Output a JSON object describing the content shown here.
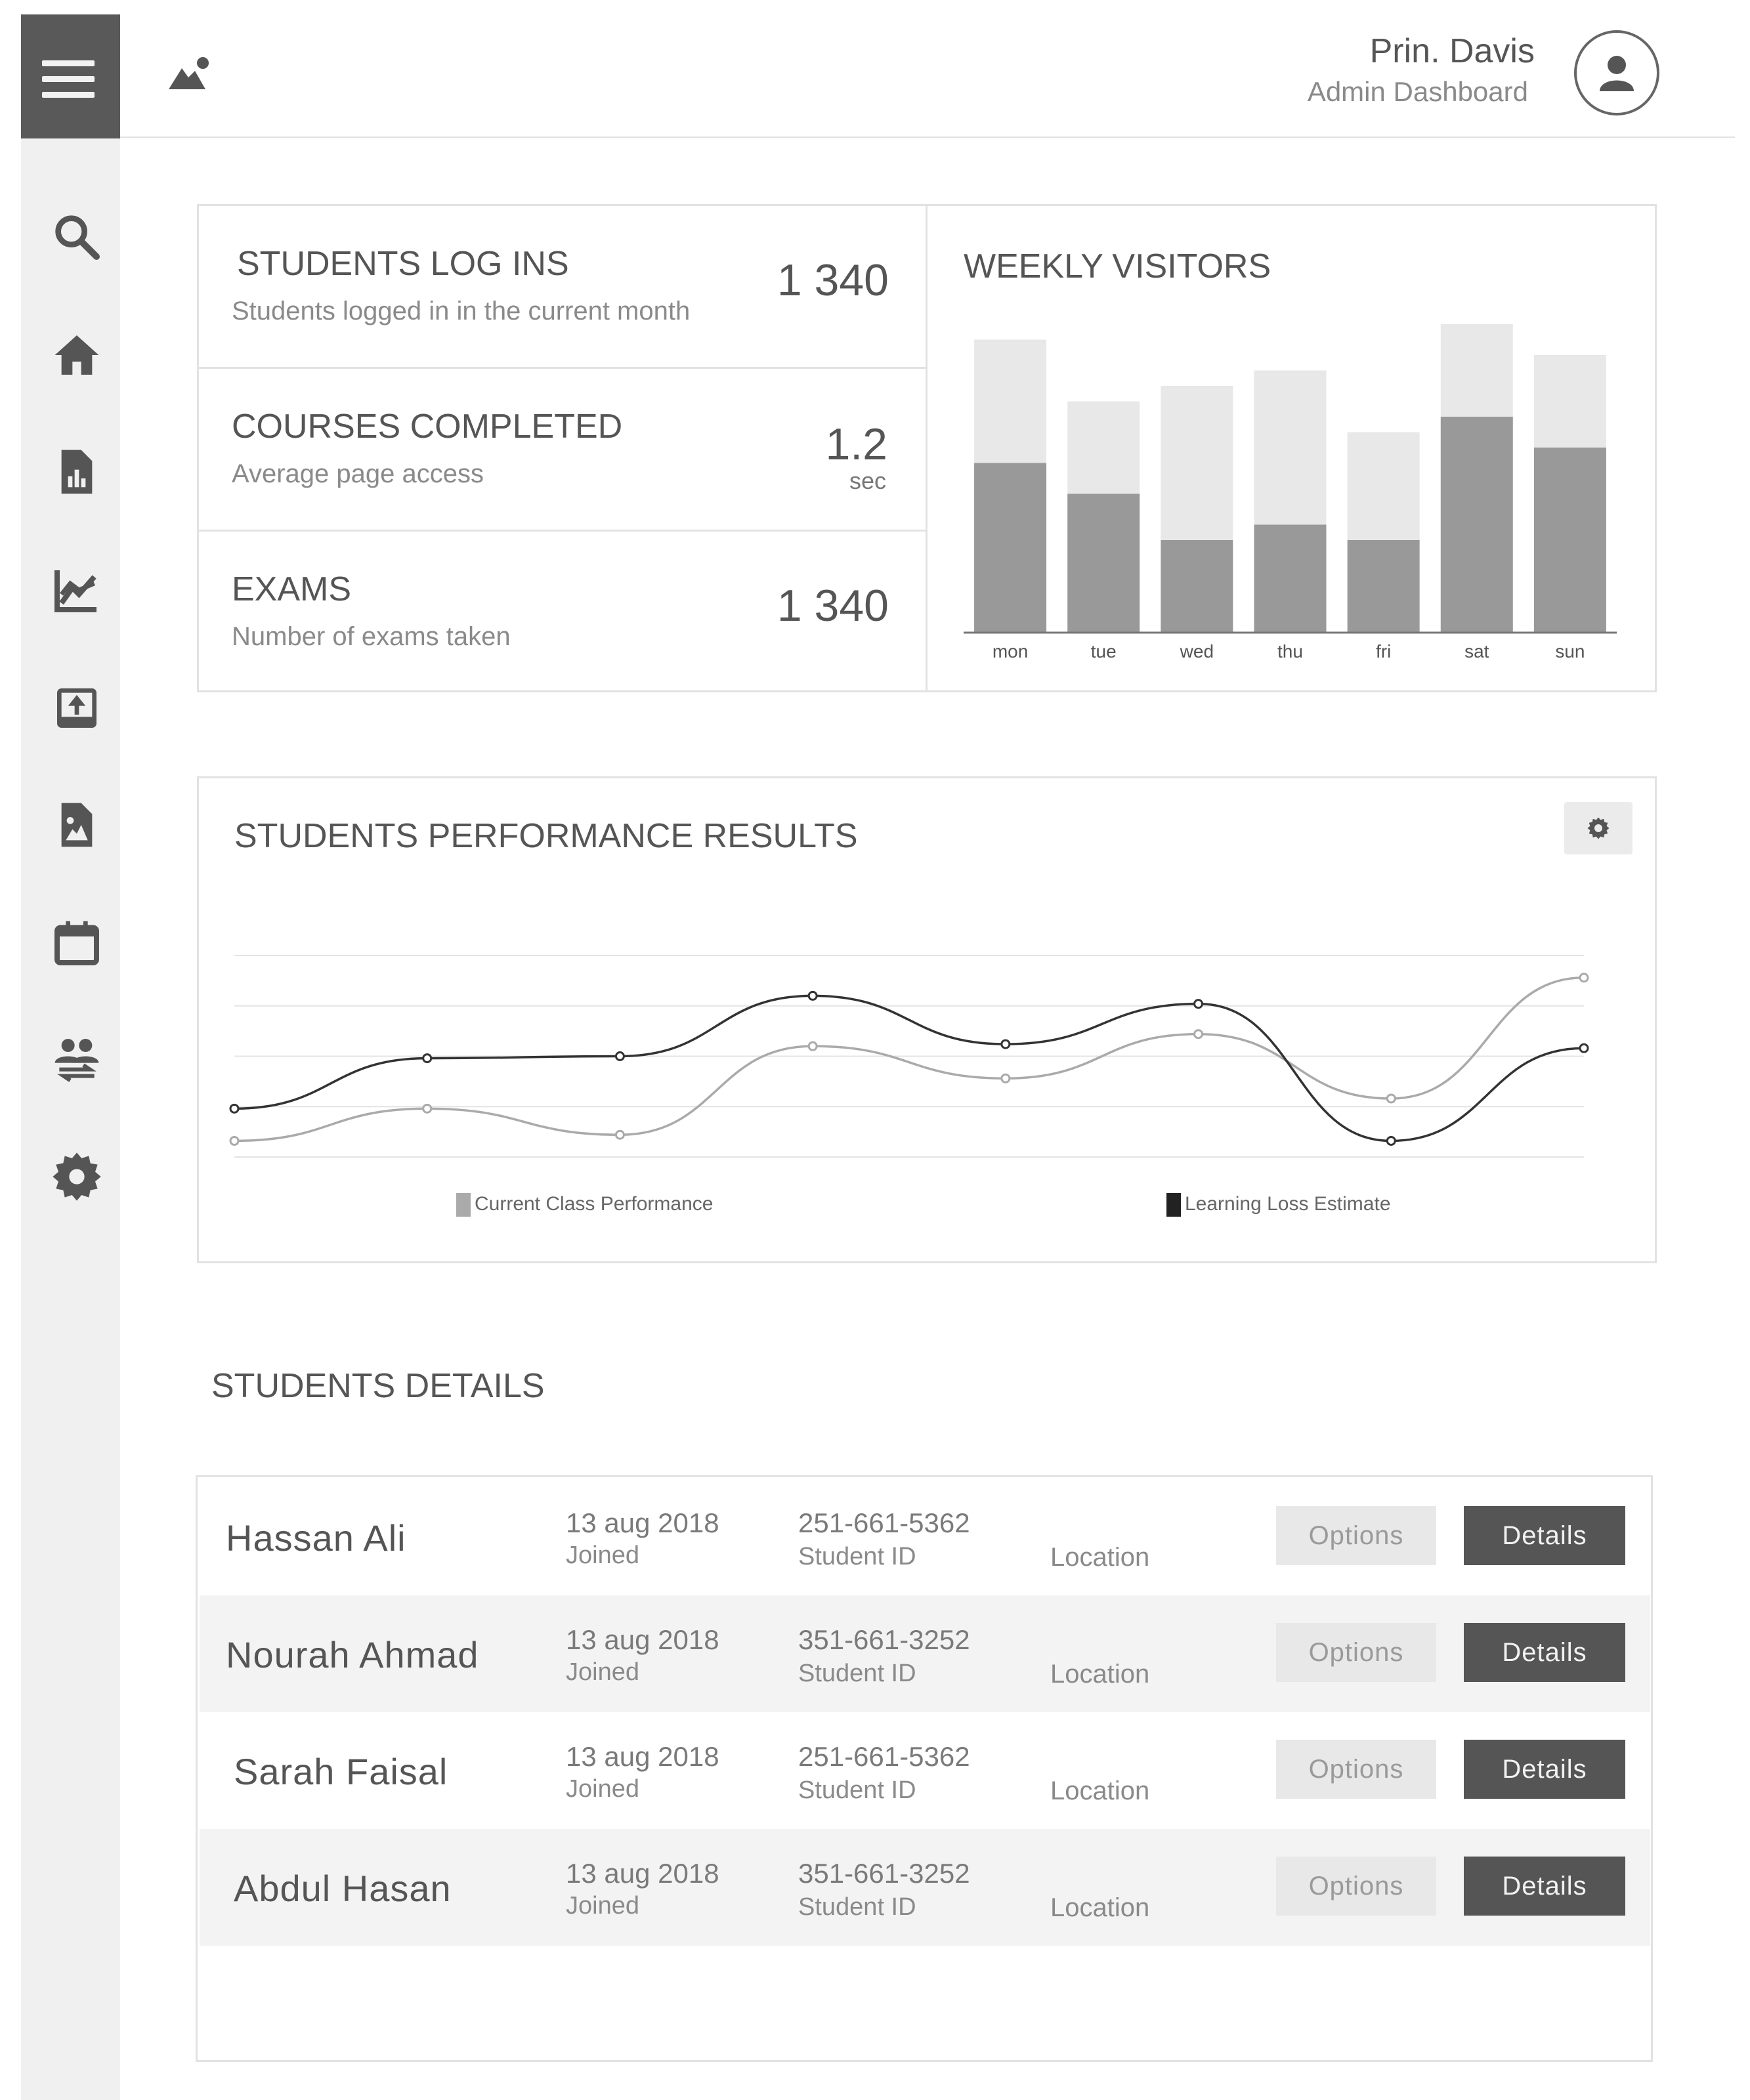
{
  "header": {
    "menu_icon": "hamburger-menu-icon",
    "brand_icon": "landscape-icon",
    "user_name": "Prin. Davis",
    "user_role": "Admin Dashboard",
    "avatar_icon": "user-icon"
  },
  "sidebar": {
    "items": [
      {
        "icon": "search-icon"
      },
      {
        "icon": "home-icon"
      },
      {
        "icon": "report-icon"
      },
      {
        "icon": "line-chart-icon"
      },
      {
        "icon": "upload-icon"
      },
      {
        "icon": "image-file-icon"
      },
      {
        "icon": "calendar-icon"
      },
      {
        "icon": "people-swap-icon"
      },
      {
        "icon": "gear-icon"
      }
    ]
  },
  "stats": [
    {
      "title": "STUDENTS LOG INS",
      "subtitle": "Students logged in in the current month",
      "value": "1 340",
      "unit": ""
    },
    {
      "title": "COURSES COMPLETED",
      "subtitle": "Average page access",
      "value": "1.2",
      "unit": "sec"
    },
    {
      "title": "EXAMS",
      "subtitle": "Number of  exams taken",
      "value": "1 340",
      "unit": ""
    }
  ],
  "weekly_visitors": {
    "title": "WEEKLY VISITORS",
    "chart_data": {
      "type": "bar",
      "stacked": true,
      "categories": [
        "mon",
        "tue",
        "wed",
        "thu",
        "fri",
        "sat",
        "sun"
      ],
      "series": [
        {
          "values": [
            55,
            45,
            30,
            35,
            30,
            70,
            60
          ],
          "color": "#999999"
        },
        {
          "values": [
            40,
            30,
            50,
            50,
            35,
            30,
            30
          ],
          "color": "#e8e8e8"
        }
      ],
      "ylim": [
        0,
        100
      ],
      "grid": false
    }
  },
  "performance": {
    "title": "STUDENTS PERFORMANCE RESULTS",
    "settings_icon": "gear-icon",
    "chart_data": {
      "type": "line",
      "x": [
        1,
        2,
        3,
        4,
        5,
        6,
        7,
        8
      ],
      "series": [
        {
          "name": "Current Class Performance",
          "color": "#aaaaaa",
          "values": [
            8,
            24,
            11,
            55,
            39,
            61,
            29,
            89
          ]
        },
        {
          "name": "Learning Loss Estimate",
          "color": "#333333",
          "values": [
            24,
            49,
            50,
            80,
            56,
            76,
            8,
            54
          ]
        }
      ],
      "ylim": [
        0,
        100
      ],
      "grid": true,
      "legend_position": "bottom"
    }
  },
  "details": {
    "title": "STUDENTS DETAILS",
    "rows": [
      {
        "name": "Hassan Ali",
        "date": "13 aug 2018",
        "joined": "Joined",
        "id": "251-661-5362",
        "id_label": "Student ID",
        "location": "Location",
        "options": "Options",
        "details": "Details"
      },
      {
        "name": "Nourah Ahmad",
        "date": "13 aug 2018",
        "joined": "Joined",
        "id": "351-661-3252",
        "id_label": "Student ID",
        "location": "Location",
        "options": "Options",
        "details": "Details"
      },
      {
        "name": "Sarah Faisal",
        "date": "13 aug 2018",
        "joined": "Joined",
        "id": "251-661-5362",
        "id_label": "Student ID",
        "location": "Location",
        "options": "Options",
        "details": "Details"
      },
      {
        "name": "Abdul Hasan",
        "date": "13 aug 2018",
        "joined": "Joined",
        "id": "351-661-3252",
        "id_label": "Student ID",
        "location": "Location",
        "options": "Options",
        "details": "Details"
      }
    ]
  }
}
